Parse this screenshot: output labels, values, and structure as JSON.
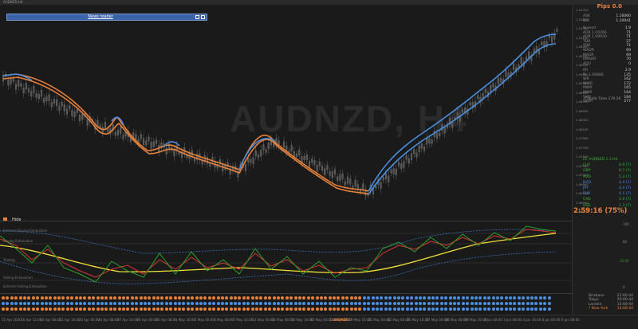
{
  "window": {
    "title": "AUDNZD,H4"
  },
  "news_reader": {
    "label": "News reader"
  },
  "symbol_watermark": "AUDNZD, H4",
  "hide_button": {
    "label": "Hide"
  },
  "pips": "Pips 0.0",
  "quote": {
    "ask_label": "ASK",
    "ask": "1.10060",
    "bid_label": "BID",
    "bid": "1.10041"
  },
  "stats_top": [
    {
      "k": "Spread",
      "v": "1.9"
    },
    {
      "k": "ADR 1.10266",
      "v": "71"
    },
    {
      "k": "ADR 1.09930",
      "v": "71"
    },
    {
      "k": "TDR",
      "v": "27"
    },
    {
      "k": "YDR",
      "v": "71"
    },
    {
      "k": "WADR",
      "v": "69"
    },
    {
      "k": "MADR",
      "v": "69"
    },
    {
      "k": "6MADR",
      "v": "70"
    },
    {
      "k": "ADU",
      "v": "0"
    }
  ],
  "stats_bottom": [
    {
      "k": "RR",
      "v": "2.9"
    },
    {
      "k": "RL 1.09880",
      "v": "135"
    },
    {
      "k": "WR",
      "v": "162"
    },
    {
      "k": "WWR",
      "v": "172"
    },
    {
      "k": "MWR",
      "v": "165"
    },
    {
      "k": "MWR",
      "v": "164"
    },
    {
      "k": "SWR",
      "v": "184"
    },
    {
      "k": "5xDR",
      "v": "277"
    }
  ],
  "candle_time": "Candle Time  179.16",
  "strength": {
    "title": "EC AUDNZD 1.3 H4",
    "rows": [
      {
        "ccy": "CHF",
        "val": "6.9 (7)",
        "color": "#3cb43c"
      },
      {
        "ccy": "GBP",
        "val": "6.7 (7)",
        "color": "#3cb43c"
      },
      {
        "ccy": "AUD",
        "val": "5.3 (7)",
        "color": "#3cb43c"
      },
      {
        "ccy": "NZD",
        "val": "4.4 (7)",
        "color": "#4a8fe0"
      },
      {
        "ccy": "JPY",
        "val": "4.4 (7)",
        "color": "#4a8fe0"
      },
      {
        "ccy": "EUR",
        "val": "4.1 (7)",
        "color": "#4a8fe0"
      },
      {
        "ccy": "CAD",
        "val": "2.9 (7)",
        "color": "#3cb43c"
      },
      {
        "ccy": "USD",
        "val": "1.3 (7)",
        "color": "#3cb43c"
      }
    ]
  },
  "countdown": "2:59:16 (75%)",
  "osc_labels": [
    "Extreme Buying Exhaustion",
    "Buying Exhaustion",
    "Trading",
    "Selling Exhaustion",
    "Extreme Selling Exhaustion"
  ],
  "osc_right": {
    "top": "100",
    "upper": "80",
    "mid": "20.66",
    "bottom": "0"
  },
  "price_ticks": [
    "1.10700",
    "1.10500",
    "1.10300",
    "1.10100",
    "1.09900",
    "1.09700",
    "1.09500",
    "1.09300",
    "1.09100",
    "1.08900",
    "1.08700",
    "1.08500",
    "1.08300",
    "1.08100",
    "1.07900",
    "1.07700",
    "1.07500",
    "1.07300",
    "1.07100",
    "1.06900",
    "1.06700",
    "1.06500",
    "1.06300"
  ],
  "sessions": [
    {
      "city": "Brisbane",
      "time": "21:00:44",
      "active": false
    },
    {
      "city": "Tokyo",
      "time": "20:00:44",
      "active": false
    },
    {
      "city": "London",
      "time": "12:00:44",
      "active": false
    },
    {
      "city": "* New York",
      "time": "14:00:44",
      "active": true
    }
  ],
  "dot_colors": {
    "orange": "#e8813a",
    "blue": "#4a8fe0"
  },
  "time_labels": [
    "15 Apr 2020",
    "16 Apr 12:00",
    "20 Apr 08:00",
    "21 Apr 16:00",
    "23 Apr 00:00",
    "24 Apr 08:00",
    "27 Apr 16:00",
    "29 Apr 00:00",
    "30 Apr 08:00",
    "1 May 16:00",
    "5 May 00:00",
    "6 May 08:00",
    "7 May 16:00",
    "11 May 00:00",
    "12 May 08:00",
    "13 May 16:00",
    "15 May 00:00",
    "18 May 08:00",
    "19 May 16:00",
    "21 May 00:00",
    "22 May 08:00",
    "25 May 16:00",
    "27 May 00:00",
    "28 May 08:00",
    "29 May 16:00",
    "2 Jun 00:00",
    "3 Jun 08:00",
    "4 Jun 16:00",
    "8 Jun 00:00",
    "9 Jun 08:00"
  ],
  "highlight_time_label": "AUDNZD"
}
